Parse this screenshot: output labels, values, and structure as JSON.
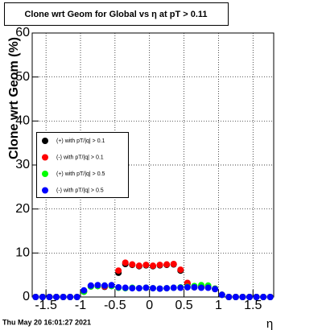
{
  "chart_data": {
    "type": "scatter",
    "title": "Clone wrt Geom for Global vs  η at pT > 0.11",
    "y_label": "Clone wrt Geom (%)",
    "x_label": "η",
    "footer": "Thu May 20 16:01:27 2021",
    "xlim": [
      -1.7,
      1.8
    ],
    "ylim": [
      0,
      60
    ],
    "xticks": [
      -1.5,
      -1,
      -0.5,
      0,
      0.5,
      1,
      1.5
    ],
    "yticks": [
      0,
      10,
      20,
      30,
      40,
      50,
      60
    ],
    "grid": true,
    "x": [
      -1.65,
      -1.55,
      -1.45,
      -1.35,
      -1.25,
      -1.15,
      -1.05,
      -0.95,
      -0.85,
      -0.75,
      -0.65,
      -0.55,
      -0.45,
      -0.35,
      -0.25,
      -0.15,
      -0.05,
      0.05,
      0.15,
      0.25,
      0.35,
      0.45,
      0.55,
      0.65,
      0.75,
      0.85,
      0.95,
      1.05,
      1.15,
      1.25,
      1.35,
      1.45,
      1.55,
      1.65,
      1.75
    ],
    "series": [
      {
        "name": "(+) with pT/|q| > 0.1",
        "color": "#000000",
        "values": [
          0,
          0,
          0,
          0,
          0,
          0,
          0,
          1.2,
          2.4,
          2.5,
          2.3,
          2.5,
          5.5,
          7.5,
          7.3,
          7,
          7.2,
          7,
          7.2,
          7.3,
          7.4,
          6,
          3,
          2.2,
          2.3,
          2.2,
          1.8,
          0.5,
          0,
          0,
          0,
          0,
          0,
          0,
          0
        ]
      },
      {
        "name": "(-) with pT/|q| > 0.1",
        "color": "#ff0000",
        "values": [
          0,
          0,
          0,
          0,
          0,
          0,
          0,
          1.3,
          2.5,
          2.6,
          2.4,
          2.6,
          6,
          7.8,
          7.4,
          7.1,
          7.3,
          7.1,
          7.3,
          7.4,
          7.5,
          6.2,
          3.2,
          2.3,
          2.4,
          2.3,
          1.9,
          0.5,
          0,
          0,
          0,
          0,
          0,
          0,
          0
        ]
      },
      {
        "name": "(+) with pT/|q| > 0.5",
        "color": "#00ff00",
        "values": [
          0,
          0,
          0,
          0,
          0,
          0,
          0,
          1.2,
          2.4,
          2.5,
          2.6,
          2.5,
          2.1,
          2,
          2.1,
          2,
          2.1,
          2,
          1.9,
          2,
          2.1,
          2.2,
          2.3,
          2.5,
          2.7,
          2.6,
          1.9,
          0.5,
          0,
          0,
          0,
          0,
          0,
          0,
          0
        ]
      },
      {
        "name": "(-) with pT/|q| > 0.5",
        "color": "#0000ff",
        "values": [
          0,
          0,
          0,
          0,
          0,
          0,
          0,
          1.5,
          2.6,
          2.7,
          2.6,
          2.7,
          2.2,
          2.1,
          2,
          2,
          2.1,
          2,
          1.9,
          2,
          2.1,
          2.1,
          2.2,
          2.2,
          2.1,
          2.1,
          1.8,
          0.5,
          0,
          0,
          0,
          0,
          0,
          0,
          0
        ]
      }
    ]
  }
}
